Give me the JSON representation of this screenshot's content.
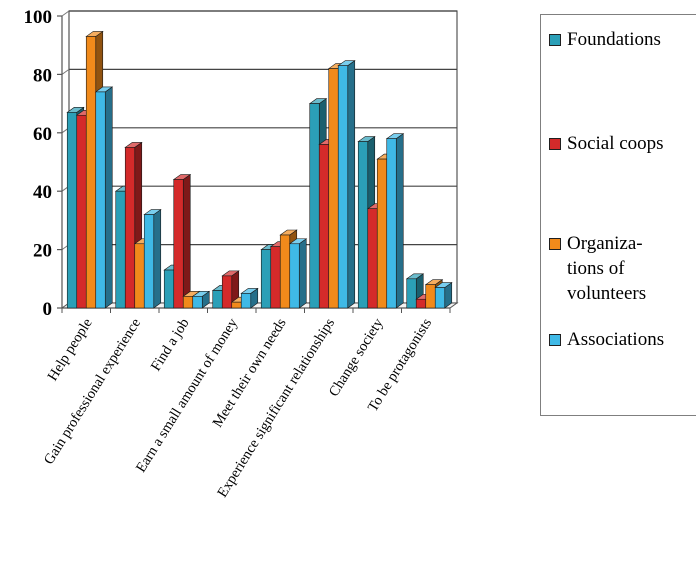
{
  "chart_data": {
    "type": "bar",
    "title": "",
    "xlabel": "",
    "ylabel": "",
    "ylim": [
      0,
      100
    ],
    "yticks": [
      0,
      20,
      40,
      60,
      80,
      100
    ],
    "grid": true,
    "legend_position": "right",
    "categories": [
      "Help people",
      "Gain professional experience",
      "Find a job",
      "Earn a small amount of money",
      "Meet their own needs",
      "Experience significant relationships",
      "Change society",
      "To be protagonists"
    ],
    "series": [
      {
        "name": "Foundations",
        "color": "#2b9fb7",
        "values": [
          67,
          40,
          13,
          6,
          20,
          70,
          57,
          10
        ]
      },
      {
        "name": "Social coops",
        "color": "#d42a2a",
        "values": [
          66,
          55,
          44,
          11,
          21,
          56,
          34,
          3
        ]
      },
      {
        "name": "Organiza-\ntions of\nvolunteers",
        "color": "#f18a1b",
        "values": [
          93,
          22,
          4,
          2,
          25,
          82,
          51,
          8
        ]
      },
      {
        "name": "Associations",
        "color": "#3fb9e6",
        "values": [
          74,
          32,
          4,
          5,
          22,
          83,
          58,
          7
        ]
      }
    ]
  }
}
